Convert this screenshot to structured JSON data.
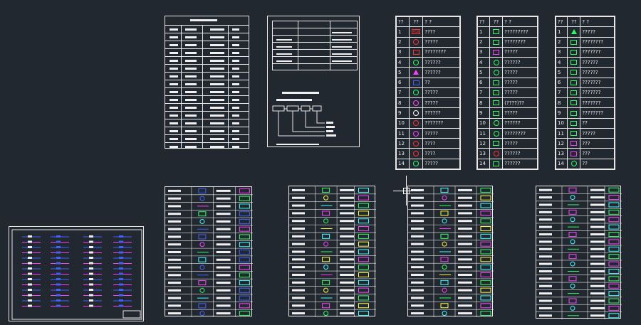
{
  "colors": {
    "background": "#212830",
    "line": "#e8e8e8",
    "red": "#ff3030",
    "green": "#30ff60",
    "magenta": "#ff40ff",
    "blue": "#4060ff",
    "yellow": "#ffff40",
    "cyan": "#40ffff"
  },
  "legend_tables": [
    {
      "header": [
        "??",
        "??",
        "?    ?"
      ],
      "rows": [
        {
          "n": "1",
          "label": "????",
          "icon": "box",
          "glyph": "PCB",
          "color": "#ff3030"
        },
        {
          "n": "2",
          "label": "?????",
          "icon": "circle",
          "color": "#ff3030"
        },
        {
          "n": "3",
          "label": "????????",
          "icon": "box",
          "color": "#ff3030"
        },
        {
          "n": "4",
          "label": "??????",
          "icon": "circle",
          "color": "#30ff60"
        },
        {
          "n": "5",
          "label": "??????",
          "icon": "triangle",
          "color": "#ff40ff"
        },
        {
          "n": "6",
          "label": "??",
          "icon": "box",
          "color": "#4060ff"
        },
        {
          "n": "7",
          "label": "?????",
          "icon": "circle",
          "color": "#30ff60"
        },
        {
          "n": "8",
          "label": "?????",
          "icon": "circle",
          "color": "#ff40ff"
        },
        {
          "n": "9",
          "label": "??????",
          "icon": "circle",
          "color": "#ffffff"
        },
        {
          "n": "10",
          "label": "???????",
          "icon": "circle",
          "color": "#ff3030"
        },
        {
          "n": "11",
          "label": "?????",
          "icon": "circle",
          "color": "#ff40ff"
        },
        {
          "n": "12",
          "label": "????",
          "icon": "circle",
          "color": "#ff3030"
        },
        {
          "n": "13",
          "label": "????",
          "icon": "circle",
          "color": "#ff3030"
        },
        {
          "n": "14",
          "label": "?????",
          "icon": "circle",
          "color": "#30ff60"
        }
      ]
    },
    {
      "header": [
        "??",
        "??",
        "?    ?"
      ],
      "rows": [
        {
          "n": "1",
          "label": "?????????",
          "icon": "box",
          "color": "#30ff60"
        },
        {
          "n": "2",
          "label": "????????",
          "icon": "box",
          "color": "#30ff60"
        },
        {
          "n": "3",
          "label": "?????",
          "icon": "box",
          "color": "#ff40ff"
        },
        {
          "n": "4",
          "label": "??????",
          "icon": "circle",
          "color": "#30ff60"
        },
        {
          "n": "5",
          "label": "?????",
          "icon": "circle",
          "color": "#30ff60"
        },
        {
          "n": "6",
          "label": "?????",
          "icon": "box",
          "color": "#30ff60"
        },
        {
          "n": "7",
          "label": "?????",
          "icon": "box",
          "color": "#30ff60"
        },
        {
          "n": "8",
          "label": "(????)??",
          "icon": "box",
          "color": "#30ff60"
        },
        {
          "n": "9",
          "label": "?????",
          "icon": "box",
          "color": "#30ff60"
        },
        {
          "n": "10",
          "label": "??????",
          "icon": "circle",
          "color": "#30ff60"
        },
        {
          "n": "11",
          "label": "????????",
          "icon": "circle",
          "color": "#30ff60"
        },
        {
          "n": "12",
          "label": "?????",
          "icon": "box",
          "color": "#30ff60"
        },
        {
          "n": "13",
          "label": "??????",
          "icon": "circle",
          "color": "#ff3030"
        },
        {
          "n": "14",
          "label": "??????",
          "icon": "box",
          "color": "#30ff60"
        }
      ]
    },
    {
      "header": [
        "??",
        "??",
        "?    ?"
      ],
      "rows": [
        {
          "n": "1",
          "label": "?????",
          "icon": "triangle",
          "color": "#30ff60"
        },
        {
          "n": "2",
          "label": "????????",
          "icon": "box",
          "color": "#30ff60"
        },
        {
          "n": "3",
          "label": "???????",
          "icon": "box",
          "color": "#30ff60"
        },
        {
          "n": "4",
          "label": "??????",
          "icon": "box",
          "color": "#30ff60"
        },
        {
          "n": "5",
          "label": "??????",
          "icon": "box",
          "color": "#30ff60"
        },
        {
          "n": "6",
          "label": "???????",
          "icon": "box",
          "color": "#30ff60"
        },
        {
          "n": "7",
          "label": "???????",
          "icon": "box",
          "color": "#30ff60"
        },
        {
          "n": "8",
          "label": "???????",
          "icon": "box",
          "color": "#30ff60"
        },
        {
          "n": "9",
          "label": "????????",
          "icon": "box",
          "color": "#30ff60"
        },
        {
          "n": "10",
          "label": "??",
          "icon": "box",
          "color": "#30ff60"
        },
        {
          "n": "11",
          "label": "?????",
          "icon": "box",
          "color": "#30ff60"
        },
        {
          "n": "12",
          "label": "???",
          "icon": "box",
          "color": "#ff40ff"
        },
        {
          "n": "13",
          "label": "???",
          "icon": "box",
          "color": "#ff40ff"
        },
        {
          "n": "14",
          "label": "??",
          "icon": "circle",
          "color": "#30ff60"
        }
      ]
    }
  ]
}
